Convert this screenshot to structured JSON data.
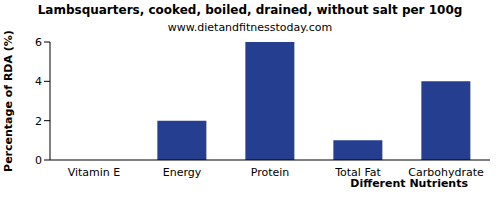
{
  "chart_data": {
    "type": "bar",
    "title": "Lambsquarters, cooked, boiled, drained, without salt per 100g",
    "subtitle": "www.dietandfitnesstoday.com",
    "x_label": "Different Nutrients",
    "y_label": "Percentage of RDA (%)",
    "categories": [
      "Vitamin E",
      "Energy",
      "Protein",
      "Total Fat",
      "Carbohydrate"
    ],
    "values": [
      0,
      2,
      6,
      1,
      4
    ],
    "color": "#253e8f",
    "ylim": [
      0,
      6
    ],
    "yticks": [
      0,
      2,
      4,
      6
    ],
    "grid": false
  }
}
